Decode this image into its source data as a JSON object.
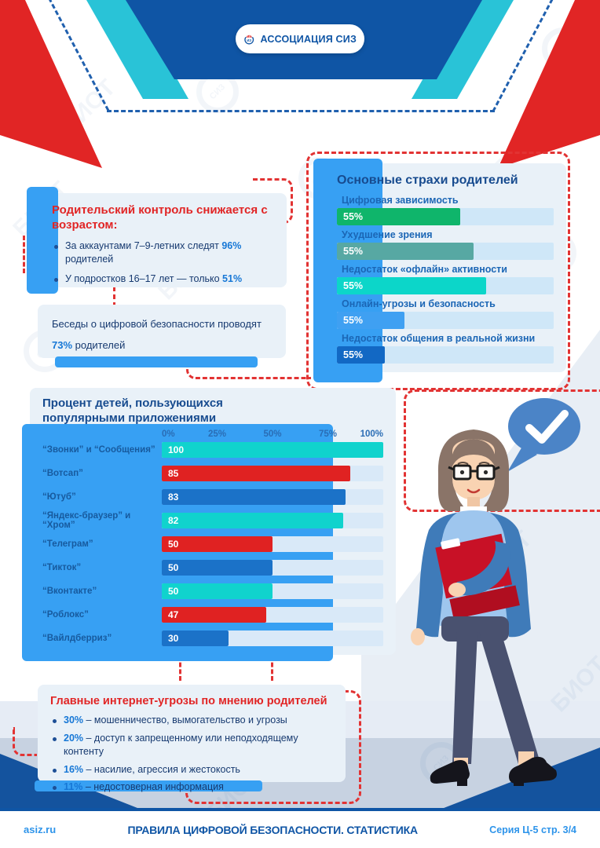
{
  "header": {
    "logo_text": "АССОЦИАЦИЯ СИЗ",
    "logo_mark_text": "ИЗ",
    "colors": {
      "band_blue": "#0f55a5",
      "stripe_cyan": "#29c3d7",
      "stripe_red": "#e12525",
      "dash_blue": "#2060ae",
      "dash_red": "#e23333",
      "accent_blue": "#37a0f3"
    }
  },
  "watermark_text": "БИОТ",
  "watermark_logo_text": "СИЗ",
  "parental_control": {
    "title": "Родительский контроль снижается с возрастом:",
    "bullets": [
      {
        "parts": [
          {
            "text": "За аккаунтами 7–9-летних следят ",
            "highlight": false
          },
          {
            "text": "96%",
            "highlight": true
          },
          {
            "text": " родителей",
            "highlight": false
          }
        ]
      },
      {
        "parts": [
          {
            "text": "У подростков 16–17 лет — только ",
            "highlight": false
          },
          {
            "text": "51%",
            "highlight": true
          }
        ]
      }
    ]
  },
  "talks": {
    "parts": [
      {
        "text": "Беседы о цифровой безопасности проводят ",
        "highlight": false
      },
      {
        "text": "73%",
        "highlight": true
      },
      {
        "text": " родителей",
        "highlight": false
      }
    ]
  },
  "chart_data": [
    {
      "type": "bar",
      "orientation": "horizontal",
      "title": "Основные страхи родителей",
      "categories": [
        "Цифровая зависимость",
        "Ухудшение зрения",
        "Недостаток «офлайн» активности",
        "Онлайн-угрозы и безопасность",
        "Недостаток общения в реальной жизни"
      ],
      "values": [
        55,
        55,
        55,
        55,
        55
      ],
      "value_labels": [
        "55%",
        "55%",
        "55%",
        "55%",
        "55%"
      ],
      "bar_colors": [
        "#0fb56b",
        "#57a8a3",
        "#0cd6c9",
        "#3fa0f2",
        "#1268c4"
      ],
      "drawn_bar_width_pct": [
        57,
        63,
        69,
        31,
        22
      ],
      "track_color": "#cfe7f8",
      "grid": false,
      "legend": false
    },
    {
      "type": "bar",
      "orientation": "horizontal",
      "title": "Процент детей, пользующихся популярными приложениями",
      "categories": [
        "“Звонки” и “Сообщения”",
        "“Вотсап”",
        "“Ютуб”",
        "“Яндекс-браузер” и “Хром”",
        "“Телеграм”",
        "“Тикток”",
        "“Вконтакте”",
        "“Роблокс”",
        "“Вайлдберриз”"
      ],
      "values": [
        100,
        85,
        83,
        82,
        50,
        50,
        50,
        47,
        30
      ],
      "bar_colors": [
        "#10d3cd",
        "#e02222",
        "#1b72c8",
        "#10d3cd",
        "#e02222",
        "#1b72c8",
        "#10d3cd",
        "#e02222",
        "#1b72c8"
      ],
      "x_axis_ticks": [
        "0%",
        "25%",
        "50%",
        "75%",
        "100%"
      ],
      "xlim": [
        0,
        100
      ],
      "track_color": "#d9e9f8",
      "grid": false,
      "legend": false
    }
  ],
  "threats": {
    "title": "Главные интернет-угрозы по мнению родителей",
    "items": [
      {
        "pct": "30%",
        "text": "– мошенничество, вымогательство и угрозы"
      },
      {
        "pct": "20%",
        "text": "– доступ к запрещенному или неподходящему контенту"
      },
      {
        "pct": "16%",
        "text": "– насилие, агрессия и жестокость"
      },
      {
        "pct": "11%",
        "text": "– недостоверная информация"
      }
    ]
  },
  "footer": {
    "site": "asiz.ru",
    "title": "ПРАВИЛА ЦИФРОВОЙ БЕЗОПАСНОСТИ. СТАТИСТИКА",
    "series": "Серия Ц-5 стр. 3/4"
  }
}
